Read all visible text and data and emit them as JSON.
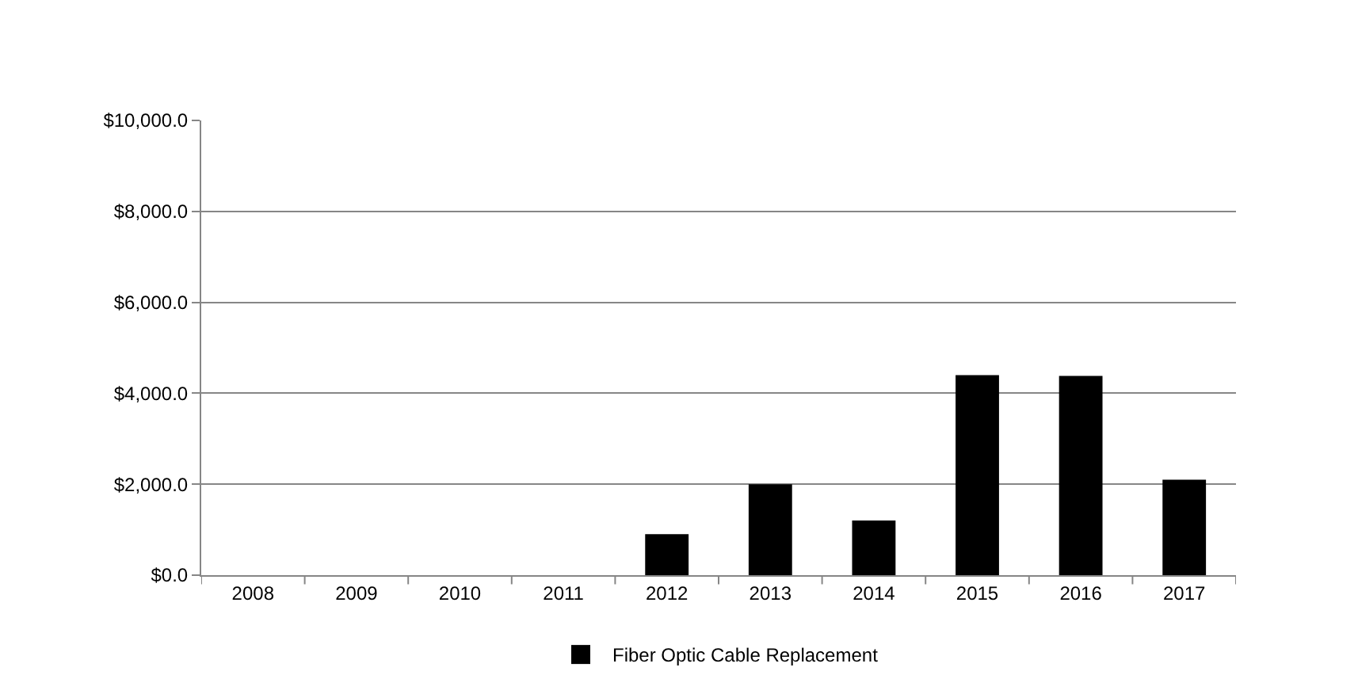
{
  "chart_data": {
    "type": "bar",
    "categories": [
      "2008",
      "2009",
      "2010",
      "2011",
      "2012",
      "2013",
      "2014",
      "2015",
      "2016",
      "2017"
    ],
    "series": [
      {
        "name": "Fiber Optic Cable Replacement",
        "color": "#000000",
        "values": [
          0,
          0,
          0,
          0,
          900,
          2000,
          1200,
          4400,
          4380,
          2100
        ]
      }
    ],
    "ylim": [
      0,
      10000
    ],
    "yticks": [
      {
        "value": 0,
        "label": "$0.0"
      },
      {
        "value": 2000,
        "label": "$2,000.0"
      },
      {
        "value": 4000,
        "label": "$4,000.0"
      },
      {
        "value": 6000,
        "label": "$6,000.0"
      },
      {
        "value": 8000,
        "label": "$8,000.0"
      },
      {
        "value": 10000,
        "label": "$10,000.0"
      }
    ],
    "grid": "y",
    "legend": "bottom"
  }
}
